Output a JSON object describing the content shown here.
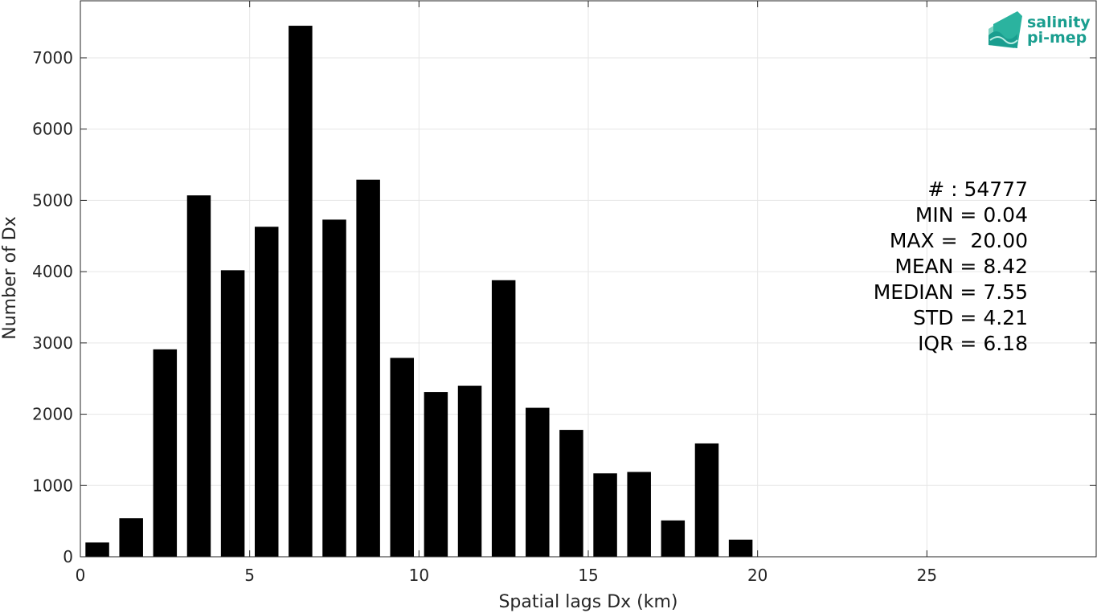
{
  "chart_data": {
    "type": "bar",
    "title": "",
    "xlabel": "Spatial lags Dx (km)",
    "ylabel": "Number of Dx",
    "xlim": [
      0,
      30
    ],
    "ylim": [
      0,
      7800
    ],
    "x_ticks": [
      0,
      5,
      10,
      15,
      20,
      25
    ],
    "y_ticks": [
      0,
      1000,
      2000,
      3000,
      4000,
      5000,
      6000,
      7000
    ],
    "grid": true,
    "bar_color": "#000000",
    "bin_width": 1,
    "bar_width_fraction": 0.7,
    "x": [
      0.5,
      1.5,
      2.5,
      3.5,
      4.5,
      5.5,
      6.5,
      7.5,
      8.5,
      9.5,
      10.5,
      11.5,
      12.5,
      13.5,
      14.5,
      15.5,
      16.5,
      17.5,
      18.5,
      19.5
    ],
    "values": [
      200,
      540,
      2910,
      5070,
      4020,
      4630,
      7450,
      4730,
      5290,
      2790,
      2310,
      2400,
      3880,
      2090,
      1780,
      1170,
      1190,
      510,
      1590,
      240
    ],
    "stats": [
      "# : 54777",
      "MIN = 0.04",
      "MAX =  20.00",
      "MEAN = 8.42",
      "MEDIAN = 7.55",
      "STD = 4.21",
      "IQR = 6.18"
    ]
  },
  "logo": {
    "line1": "salinity",
    "line2": "pi-mep",
    "color": "#1a9e8f"
  }
}
